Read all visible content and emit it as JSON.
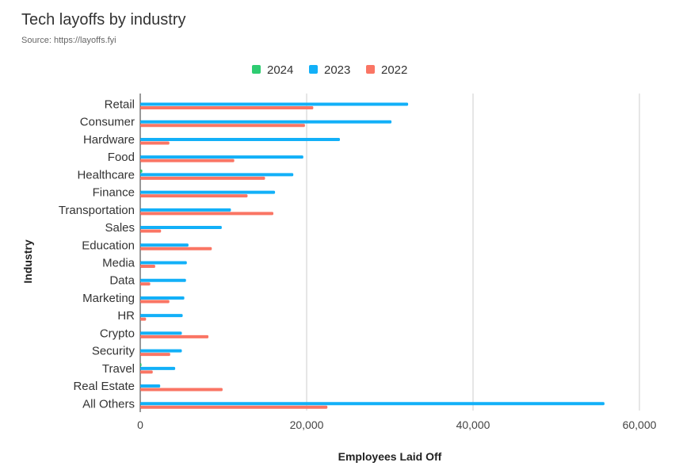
{
  "header": {
    "title": "Tech layoffs by industry",
    "subtitle": "Source: https://layoffs.fyi"
  },
  "chart_data": {
    "type": "bar",
    "orientation": "horizontal",
    "xlabel": "Employees Laid Off",
    "ylabel": "Industry",
    "xlim": [
      0,
      60000
    ],
    "xticks": [
      0,
      20000,
      40000,
      60000
    ],
    "xtick_labels": [
      "0",
      "20,000",
      "40,000",
      "60,000"
    ],
    "grid": true,
    "legend_position": "top",
    "categories": [
      "Retail",
      "Consumer",
      "Hardware",
      "Food",
      "Healthcare",
      "Finance",
      "Transportation",
      "Sales",
      "Education",
      "Media",
      "Data",
      "Marketing",
      "HR",
      "Crypto",
      "Security",
      "Travel",
      "Real Estate",
      "All Others"
    ],
    "series": [
      {
        "name": "2024",
        "color": "#2ecc71",
        "values": [
          0,
          0,
          0,
          0,
          250,
          0,
          0,
          0,
          0,
          0,
          0,
          0,
          0,
          0,
          0,
          150,
          0,
          0
        ]
      },
      {
        "name": "2023",
        "color": "#12b0f8",
        "values": [
          32200,
          30200,
          24000,
          19600,
          18400,
          16200,
          10900,
          9800,
          5800,
          5600,
          5500,
          5300,
          5100,
          5000,
          5000,
          4200,
          2400,
          55800
        ]
      },
      {
        "name": "2022",
        "color": "#fa7564",
        "values": [
          20800,
          19800,
          3500,
          11300,
          15000,
          12900,
          16000,
          2500,
          8600,
          1800,
          1200,
          3500,
          700,
          8200,
          3600,
          1500,
          9900,
          22500
        ]
      }
    ]
  }
}
